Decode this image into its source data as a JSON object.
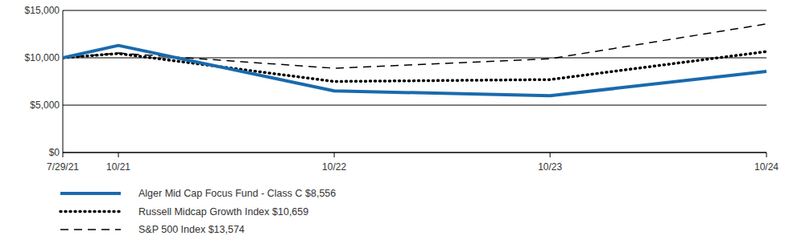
{
  "chart_data": {
    "type": "line",
    "x": [
      "7/29/21",
      "10/21",
      "10/22",
      "10/23",
      "10/24"
    ],
    "xlim": [
      "7/29/21",
      "10/24"
    ],
    "xticks": [
      "7/29/21",
      "10/21",
      "10/22",
      "10/23",
      "10/24"
    ],
    "ylim": [
      0,
      15000
    ],
    "yticks": [
      {
        "value": 0,
        "label": "$0"
      },
      {
        "value": 5000,
        "label": "$5,000"
      },
      {
        "value": 10000,
        "label": "$10,000"
      },
      {
        "value": 15000,
        "label": "$15,000"
      }
    ],
    "grid": true,
    "legend": "bottom",
    "series": [
      {
        "name": "Alger Mid Cap Focus Fund - Class C $8,556",
        "color": "#1a6aad",
        "line_style": "solid",
        "values": [
          10000,
          11300,
          6500,
          6000,
          8556
        ]
      },
      {
        "name": "Russell Midcap Growth Index $10,659",
        "color": "#000000",
        "line_style": "dotted",
        "values": [
          10000,
          10450,
          7500,
          7700,
          10659
        ]
      },
      {
        "name": "S&P 500 Index $13,574",
        "color": "#000000",
        "line_style": "dashed",
        "values": [
          10000,
          10500,
          8900,
          9900,
          13574
        ]
      }
    ]
  }
}
